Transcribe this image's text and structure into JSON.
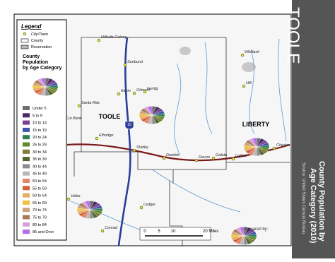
{
  "legend": {
    "title": "Legend",
    "items": [
      "City/Town",
      "County",
      "Reservation"
    ],
    "pie_title": "County Population by Age Category",
    "age_categories": [
      {
        "label": "Under 5",
        "color": "#6e6e6e"
      },
      {
        "label": "5 to 9",
        "color": "#4b2a63"
      },
      {
        "label": "10 to 14",
        "color": "#7a3f96"
      },
      {
        "label": "15 to 19",
        "color": "#3f55a6"
      },
      {
        "label": "20 to 24",
        "color": "#2f7f55"
      },
      {
        "label": "25 to 29",
        "color": "#5f8a2a"
      },
      {
        "label": "30 to 34",
        "color": "#7d7d36"
      },
      {
        "label": "35 to 39",
        "color": "#4f6530"
      },
      {
        "label": "40 to 44",
        "color": "#8c8c8c"
      },
      {
        "label": "45 to 49",
        "color": "#b9b9b9"
      },
      {
        "label": "50 to 54",
        "color": "#e3866a"
      },
      {
        "label": "55 to 59",
        "color": "#d2623a"
      },
      {
        "label": "60 to 64",
        "color": "#e6ad63"
      },
      {
        "label": "65 to 69",
        "color": "#f0c23e"
      },
      {
        "label": "70 to 74",
        "color": "#c9a27c"
      },
      {
        "label": "75 to 79",
        "color": "#a8785a"
      },
      {
        "label": "80 to 84",
        "color": "#d7a3d7"
      },
      {
        "label": "85 and Over",
        "color": "#b36ee6"
      }
    ]
  },
  "map": {
    "counties": [
      "TOOLE",
      "LIBERTY"
    ],
    "cities": [
      "Hillside Colony",
      "Sunburst",
      "Kevin",
      "Oilmont",
      "Ferdig",
      "Santa Rita",
      "Cut Bank",
      "Ethridge",
      "Shelby",
      "Dunkirk",
      "Devon",
      "Galata",
      "Lothair",
      "Chester",
      "Whitlash",
      "Hill",
      "Valier",
      "Ledger",
      "Conrad"
    ],
    "highway": "15",
    "scale": [
      "0",
      "5",
      "10",
      "20 Miles"
    ],
    "credit": "Prepared by:"
  },
  "sidebar": {
    "title": "TOOLE",
    "subtitle": [
      "County Population by",
      "Age Category (2010)"
    ],
    "source": "Source: United States Census Bureau"
  }
}
